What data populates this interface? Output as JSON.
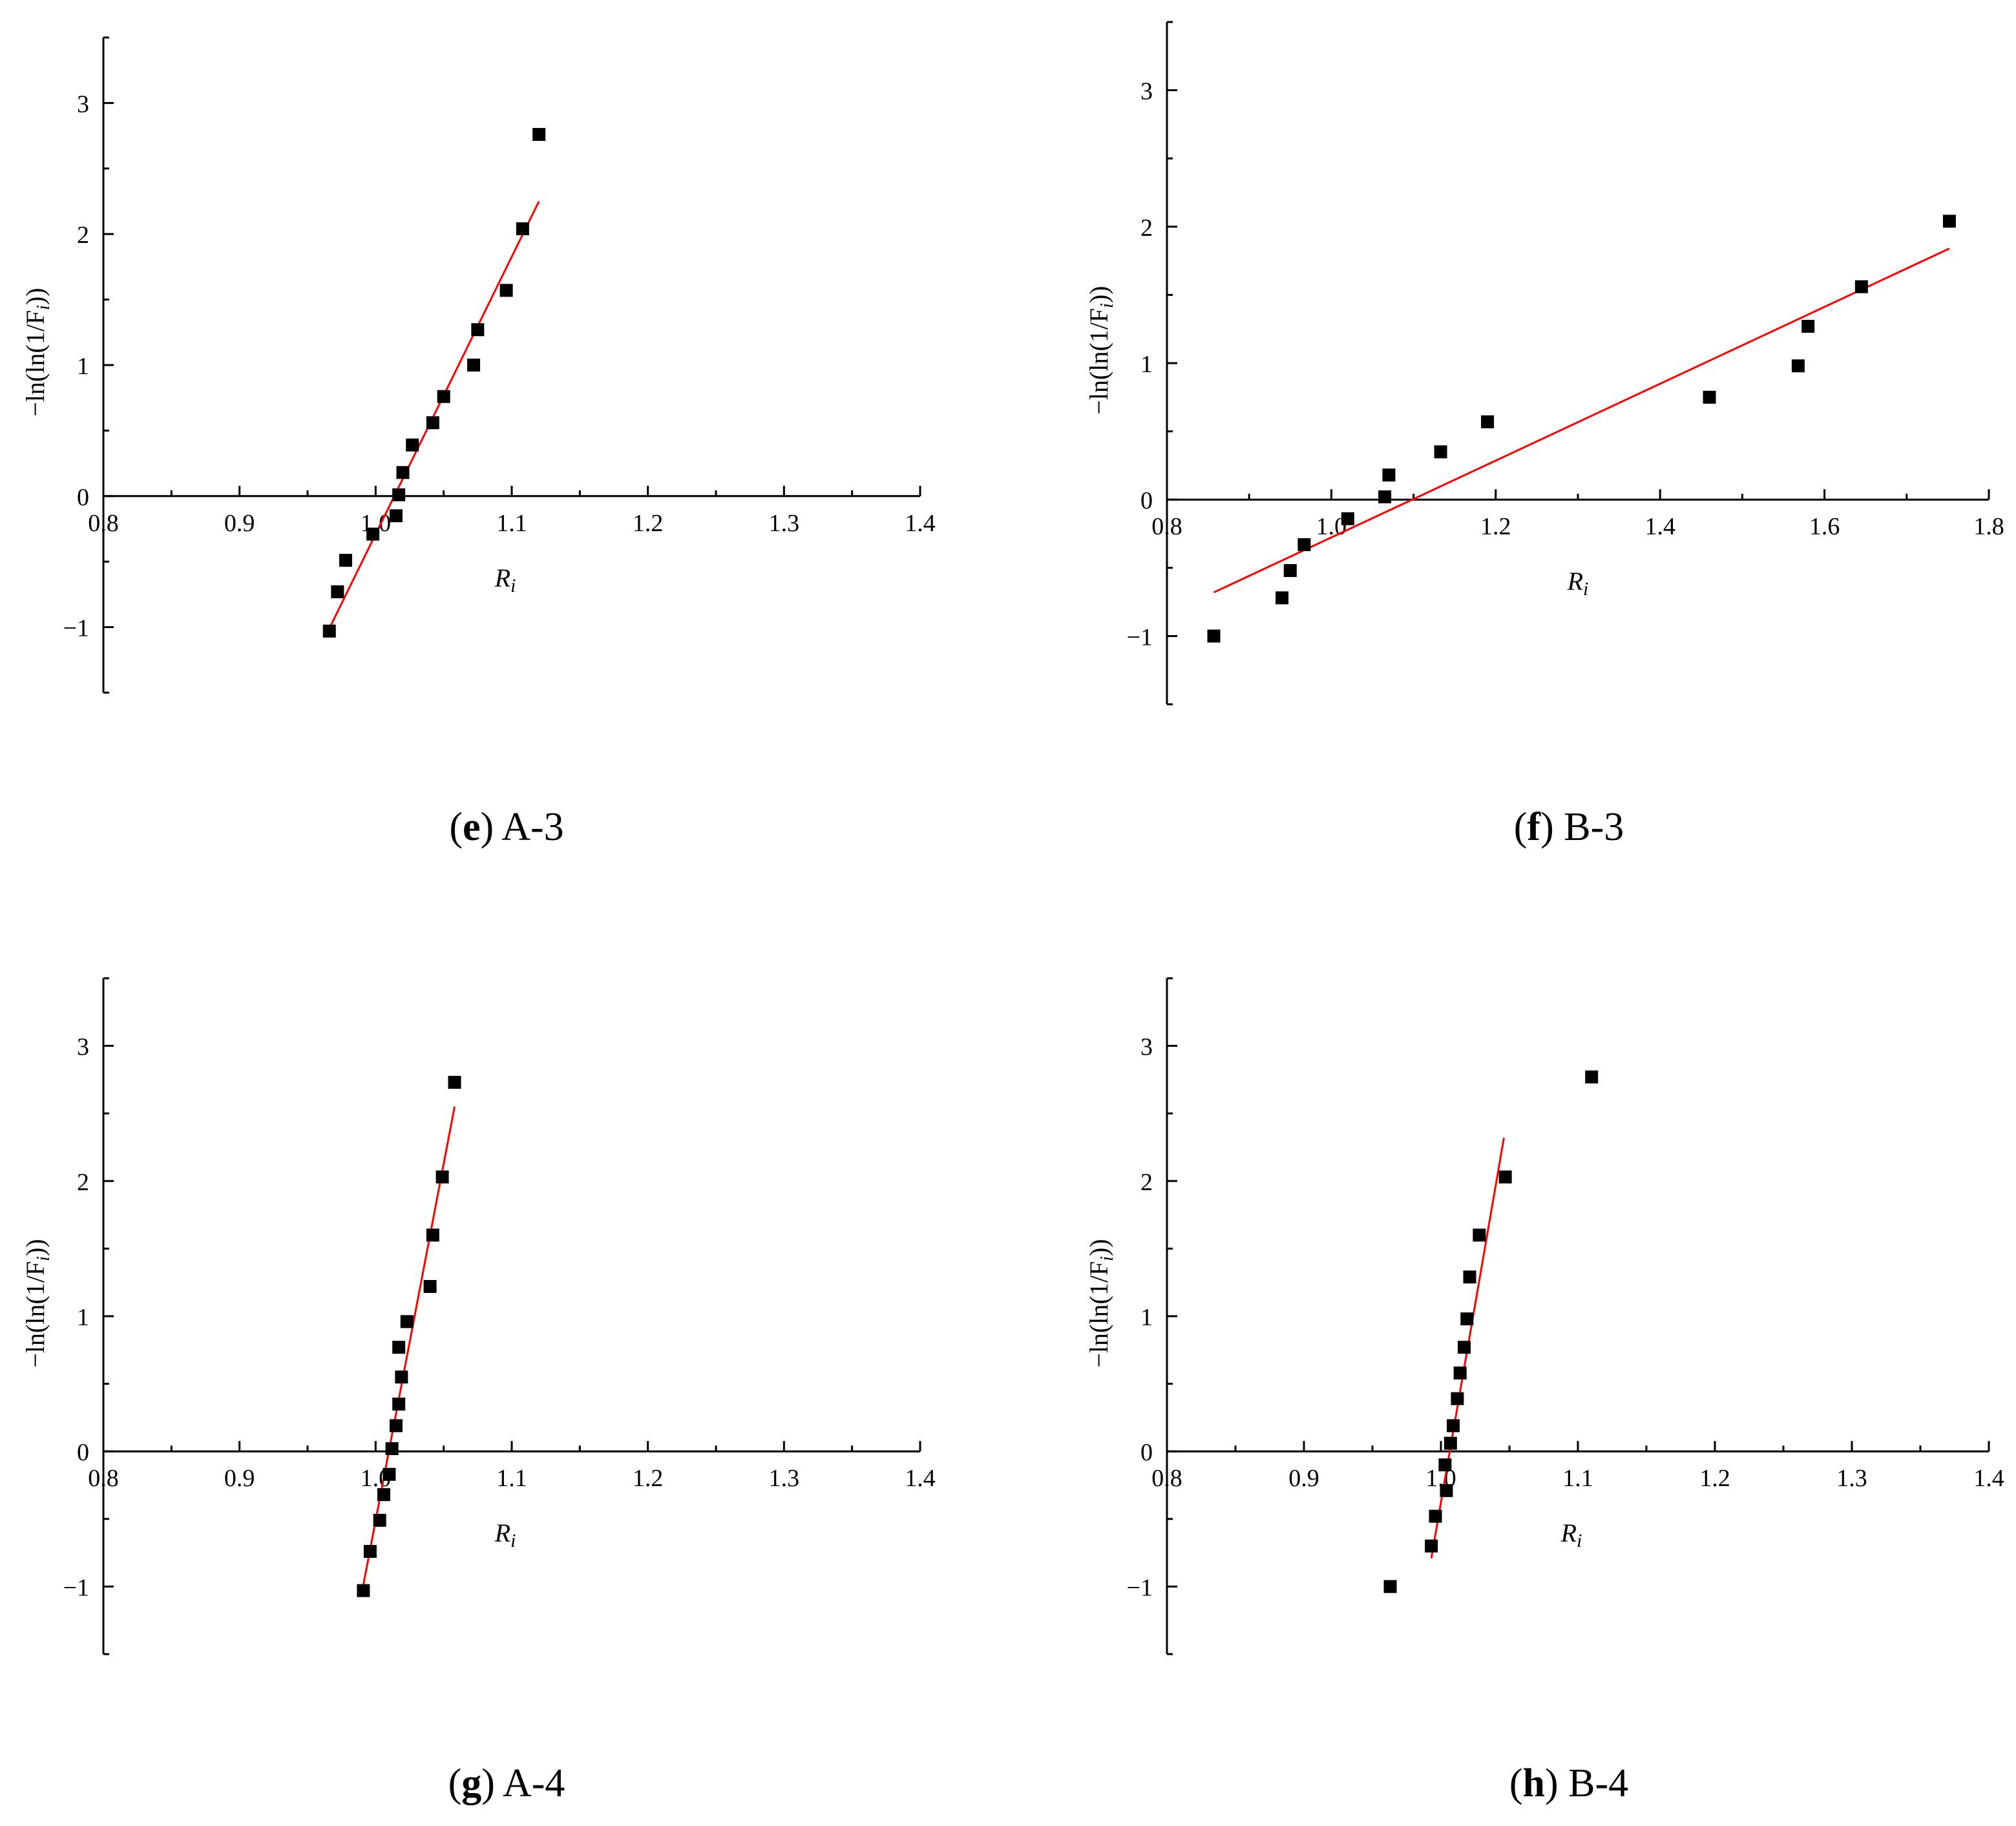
{
  "colors": {
    "marker": "#000000",
    "fit_line": "#ff0000",
    "axis": "#000000"
  },
  "chart_data": [
    {
      "type": "scatter",
      "caption": {
        "open": "(",
        "letter": "e",
        "close": ")",
        "text": "A-3"
      },
      "xlabel": "R",
      "xlabel_sub": "i",
      "ylabel": "−ln(ln(1/F",
      "ylabel_sub": "i",
      "ylabel_end": "))",
      "xlim": [
        0.8,
        1.4
      ],
      "ylim": [
        -1.5,
        3.5
      ],
      "xticks": [
        {
          "v": 0.8,
          "label": "0.8"
        },
        {
          "v": 0.9,
          "label": "0.9"
        },
        {
          "v": 1.0,
          "label": "1.0"
        },
        {
          "v": 1.1,
          "label": "1.1"
        },
        {
          "v": 1.2,
          "label": "1.2"
        },
        {
          "v": 1.3,
          "label": "1.3"
        },
        {
          "v": 1.4,
          "label": "1.4"
        }
      ],
      "yticks": [
        {
          "v": -1,
          "label": "−1"
        },
        {
          "v": 0,
          "label": "0"
        },
        {
          "v": 1,
          "label": "1"
        },
        {
          "v": 2,
          "label": "2"
        },
        {
          "v": 3,
          "label": "3"
        }
      ],
      "points": [
        [
          0.966,
          -1.03
        ],
        [
          0.972,
          -0.73
        ],
        [
          0.978,
          -0.49
        ],
        [
          0.998,
          -0.29
        ],
        [
          1.015,
          -0.15
        ],
        [
          1.017,
          0.01
        ],
        [
          1.02,
          0.18
        ],
        [
          1.027,
          0.39
        ],
        [
          1.042,
          0.56
        ],
        [
          1.05,
          0.76
        ],
        [
          1.072,
          1.0
        ],
        [
          1.075,
          1.27
        ],
        [
          1.096,
          1.57
        ],
        [
          1.108,
          2.04
        ],
        [
          1.12,
          2.76
        ]
      ],
      "fit": [
        [
          0.966,
          -1.01
        ],
        [
          1.12,
          2.25
        ]
      ]
    },
    {
      "type": "scatter",
      "caption": {
        "open": "(",
        "letter": "f",
        "close": ")",
        "text": "B-3"
      },
      "xlabel": "R",
      "xlabel_sub": "i",
      "ylabel": "−ln(ln(1/F",
      "ylabel_sub": "i",
      "ylabel_end": "))",
      "xlim": [
        0.8,
        1.8
      ],
      "ylim": [
        -1.5,
        3.5
      ],
      "xticks": [
        {
          "v": 0.8,
          "label": "0.8"
        },
        {
          "v": 1.0,
          "label": "1.0"
        },
        {
          "v": 1.2,
          "label": "1.2"
        },
        {
          "v": 1.4,
          "label": "1.4"
        },
        {
          "v": 1.6,
          "label": "1.6"
        },
        {
          "v": 1.8,
          "label": "1.8"
        }
      ],
      "yticks": [
        {
          "v": -1,
          "label": "−1"
        },
        {
          "v": 0,
          "label": "0"
        },
        {
          "v": 1,
          "label": "1"
        },
        {
          "v": 2,
          "label": "2"
        },
        {
          "v": 3,
          "label": "3"
        }
      ],
      "points": [
        [
          0.857,
          -1.0
        ],
        [
          0.94,
          -0.72
        ],
        [
          0.95,
          -0.52
        ],
        [
          0.967,
          -0.33
        ],
        [
          1.02,
          -0.14
        ],
        [
          1.065,
          0.02
        ],
        [
          1.07,
          0.18
        ],
        [
          1.133,
          0.35
        ],
        [
          1.19,
          0.57
        ],
        [
          1.46,
          0.75
        ],
        [
          1.568,
          0.98
        ],
        [
          1.58,
          1.27
        ],
        [
          1.645,
          1.56
        ],
        [
          1.752,
          2.04
        ]
      ],
      "fit": [
        [
          0.857,
          -0.68
        ],
        [
          1.752,
          1.84
        ]
      ]
    },
    {
      "type": "scatter",
      "caption": {
        "open": "(",
        "letter": "g",
        "close": ")",
        "text": "A-4"
      },
      "xlabel": "R",
      "xlabel_sub": "i",
      "ylabel": "−ln(ln(1/F",
      "ylabel_sub": "i",
      "ylabel_end": "))",
      "xlim": [
        0.8,
        1.4
      ],
      "ylim": [
        -1.5,
        3.5
      ],
      "xticks": [
        {
          "v": 0.8,
          "label": "0.8"
        },
        {
          "v": 0.9,
          "label": "0.9"
        },
        {
          "v": 1.0,
          "label": "1.0"
        },
        {
          "v": 1.1,
          "label": "1.1"
        },
        {
          "v": 1.2,
          "label": "1.2"
        },
        {
          "v": 1.3,
          "label": "1.3"
        },
        {
          "v": 1.4,
          "label": "1.4"
        }
      ],
      "yticks": [
        {
          "v": -1,
          "label": "−1"
        },
        {
          "v": 0,
          "label": "0"
        },
        {
          "v": 1,
          "label": "1"
        },
        {
          "v": 2,
          "label": "2"
        },
        {
          "v": 3,
          "label": "3"
        }
      ],
      "points": [
        [
          0.991,
          -1.03
        ],
        [
          0.996,
          -0.74
        ],
        [
          1.003,
          -0.51
        ],
        [
          1.006,
          -0.32
        ],
        [
          1.01,
          -0.17
        ],
        [
          1.012,
          0.02
        ],
        [
          1.015,
          0.19
        ],
        [
          1.017,
          0.35
        ],
        [
          1.019,
          0.55
        ],
        [
          1.017,
          0.77
        ],
        [
          1.023,
          0.96
        ],
        [
          1.04,
          1.22
        ],
        [
          1.042,
          1.6
        ],
        [
          1.049,
          2.03
        ],
        [
          1.058,
          2.73
        ]
      ],
      "fit": [
        [
          0.99,
          -1.04
        ],
        [
          1.058,
          2.55
        ]
      ]
    },
    {
      "type": "scatter",
      "caption": {
        "open": "(",
        "letter": "h",
        "close": ")",
        "text": "B-4"
      },
      "xlabel": "R",
      "xlabel_sub": "i",
      "ylabel": "−ln(ln(1/F",
      "ylabel_sub": "i",
      "ylabel_end": "))",
      "xlim": [
        0.8,
        1.4
      ],
      "ylim": [
        -1.5,
        3.5
      ],
      "xticks": [
        {
          "v": 0.8,
          "label": "0.8"
        },
        {
          "v": 0.9,
          "label": "0.9"
        },
        {
          "v": 1.0,
          "label": "1.0"
        },
        {
          "v": 1.1,
          "label": "1.1"
        },
        {
          "v": 1.2,
          "label": "1.2"
        },
        {
          "v": 1.3,
          "label": "1.3"
        },
        {
          "v": 1.4,
          "label": "1.4"
        }
      ],
      "yticks": [
        {
          "v": -1,
          "label": "−1"
        },
        {
          "v": 0,
          "label": "0"
        },
        {
          "v": 1,
          "label": "1"
        },
        {
          "v": 2,
          "label": "2"
        },
        {
          "v": 3,
          "label": "3"
        }
      ],
      "points": [
        [
          0.963,
          -1.0
        ],
        [
          0.993,
          -0.7
        ],
        [
          0.996,
          -0.48
        ],
        [
          1.004,
          -0.29
        ],
        [
          1.003,
          -0.1
        ],
        [
          1.007,
          0.06
        ],
        [
          1.009,
          0.19
        ],
        [
          1.012,
          0.39
        ],
        [
          1.014,
          0.58
        ],
        [
          1.017,
          0.77
        ],
        [
          1.019,
          0.98
        ],
        [
          1.021,
          1.29
        ],
        [
          1.028,
          1.6
        ],
        [
          1.047,
          2.03
        ],
        [
          1.11,
          2.77
        ]
      ],
      "fit": [
        [
          0.993,
          -0.79
        ],
        [
          1.046,
          2.32
        ]
      ]
    }
  ]
}
